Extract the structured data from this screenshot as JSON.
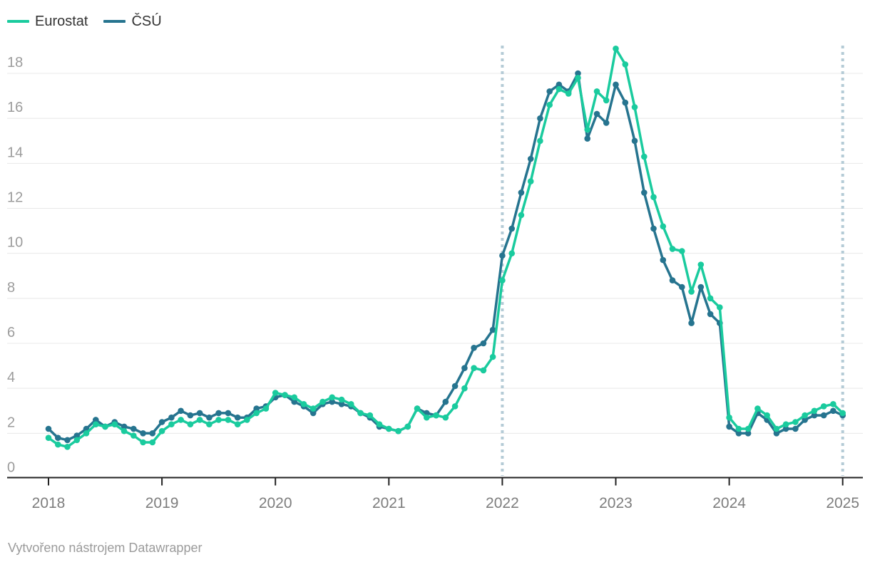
{
  "page": {
    "background": "#ffffff"
  },
  "footer": {
    "text": "Vytvořeno nástrojem Datawrapper"
  },
  "chart_data": {
    "type": "line",
    "title": "",
    "x_start": "2018-01",
    "x_step_months": 1,
    "x_tick_labels": [
      "2018",
      "2019",
      "2020",
      "2021",
      "2022",
      "2023",
      "2024",
      "2025"
    ],
    "yticks": [
      0,
      2,
      4,
      6,
      8,
      10,
      12,
      14,
      16,
      18
    ],
    "ylim": [
      0,
      19.2
    ],
    "grid": true,
    "legend_position": "top-left",
    "gridline_color": "#e8e8e8",
    "axis_color": "#222222",
    "y_label_color": "#9c9c9c",
    "x_label_color": "#7d7d7d",
    "guide_color": "#b4cbd6",
    "vertical_guides": [
      "2022-01",
      "2025-01"
    ],
    "series": [
      {
        "name": "Eurostat",
        "color": "#1acb9e",
        "values": [
          1.8,
          1.5,
          1.4,
          1.7,
          2.0,
          2.4,
          2.3,
          2.4,
          2.1,
          1.9,
          1.6,
          1.6,
          2.1,
          2.4,
          2.6,
          2.4,
          2.6,
          2.4,
          2.6,
          2.6,
          2.4,
          2.6,
          2.9,
          3.1,
          3.8,
          3.7,
          3.6,
          3.3,
          3.1,
          3.4,
          3.6,
          3.5,
          3.3,
          2.9,
          2.8,
          2.4,
          2.2,
          2.1,
          2.3,
          3.1,
          2.7,
          2.8,
          2.7,
          3.2,
          4.0,
          4.9,
          4.8,
          5.4,
          8.8,
          10.0,
          11.7,
          13.2,
          15.0,
          16.6,
          17.3,
          17.1,
          17.8,
          15.5,
          17.2,
          16.8,
          19.1,
          18.4,
          16.5,
          14.3,
          12.5,
          11.2,
          10.2,
          10.1,
          8.3,
          9.5,
          8.0,
          7.6,
          2.7,
          2.2,
          2.2,
          3.1,
          2.8,
          2.2,
          2.4,
          2.5,
          2.8,
          3.0,
          3.2,
          3.3,
          2.9
        ]
      },
      {
        "name": "ČSÚ",
        "color": "#26748f",
        "values": [
          2.2,
          1.8,
          1.7,
          1.9,
          2.2,
          2.6,
          2.3,
          2.5,
          2.3,
          2.2,
          2.0,
          2.0,
          2.5,
          2.7,
          3.0,
          2.8,
          2.9,
          2.7,
          2.9,
          2.9,
          2.7,
          2.7,
          3.1,
          3.2,
          3.6,
          3.7,
          3.4,
          3.2,
          2.9,
          3.3,
          3.4,
          3.3,
          3.2,
          2.9,
          2.7,
          2.3,
          2.2,
          2.1,
          2.3,
          3.1,
          2.9,
          2.8,
          3.4,
          4.1,
          4.9,
          5.8,
          6.0,
          6.6,
          9.9,
          11.1,
          12.7,
          14.2,
          16.0,
          17.2,
          17.5,
          17.2,
          18.0,
          15.1,
          16.2,
          15.8,
          17.5,
          16.7,
          15.0,
          12.7,
          11.1,
          9.7,
          8.8,
          8.5,
          6.9,
          8.5,
          7.3,
          6.9,
          2.3,
          2.0,
          2.0,
          2.9,
          2.6,
          2.0,
          2.2,
          2.2,
          2.6,
          2.8,
          2.8,
          3.0,
          2.8
        ]
      }
    ]
  }
}
